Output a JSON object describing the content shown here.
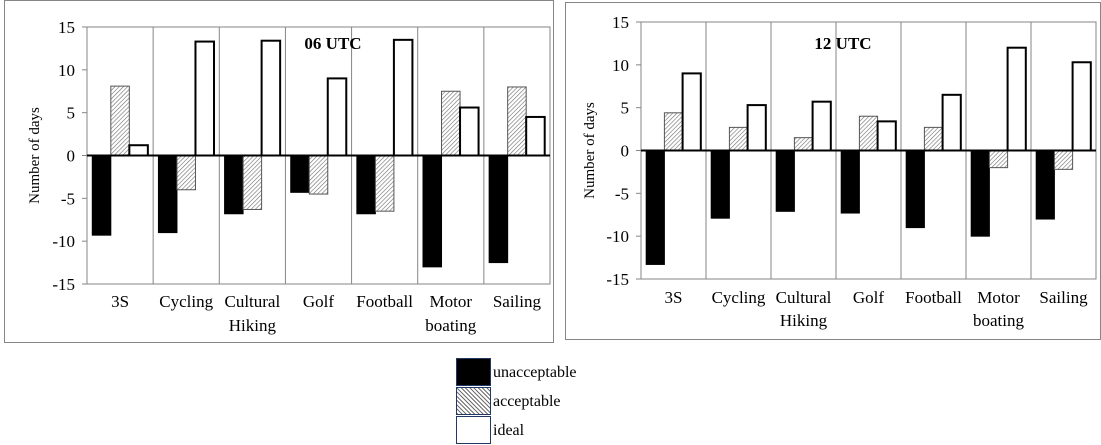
{
  "chart_data": [
    {
      "type": "bar",
      "title": "06 UTC",
      "ylabel": "Number of days",
      "xlabel": "",
      "ylim": [
        -15,
        15
      ],
      "yticks": [
        -15,
        -10,
        -5,
        0,
        5,
        10,
        15
      ],
      "grid": "vertical",
      "categories": [
        [
          "3S"
        ],
        [
          "Cycling"
        ],
        [
          "Cultural",
          "Hiking"
        ],
        [
          "Golf"
        ],
        [
          "Football"
        ],
        [
          "Motor",
          "boating"
        ],
        [
          "Sailing"
        ]
      ],
      "series": [
        {
          "name": "unacceptable",
          "values": [
            -9.3,
            -9.0,
            -6.8,
            -4.3,
            -6.8,
            -13.0,
            -12.5
          ]
        },
        {
          "name": "acceptable",
          "values": [
            8.1,
            -4.0,
            -6.3,
            -4.5,
            -6.5,
            7.5,
            8.0
          ]
        },
        {
          "name": "ideal",
          "values": [
            1.2,
            13.3,
            13.4,
            9.0,
            13.5,
            5.6,
            4.5
          ]
        }
      ]
    },
    {
      "type": "bar",
      "title": "12 UTC",
      "ylabel": "Number of days",
      "xlabel": "",
      "ylim": [
        -15,
        15
      ],
      "yticks": [
        -15,
        -10,
        -5,
        0,
        5,
        10,
        15
      ],
      "grid": "vertical",
      "categories": [
        [
          "3S"
        ],
        [
          "Cycling"
        ],
        [
          "Cultural",
          "Hiking"
        ],
        [
          "Golf"
        ],
        [
          "Football"
        ],
        [
          "Motor",
          "boating"
        ],
        [
          "Sailing"
        ]
      ],
      "series": [
        {
          "name": "unacceptable",
          "values": [
            -13.3,
            -7.9,
            -7.1,
            -7.3,
            -9.0,
            -10.0,
            -8.0
          ]
        },
        {
          "name": "acceptable",
          "values": [
            4.4,
            2.7,
            1.5,
            4.0,
            2.7,
            -2.0,
            -2.2
          ]
        },
        {
          "name": "ideal",
          "values": [
            9.0,
            5.3,
            5.7,
            3.4,
            6.5,
            12.0,
            10.3
          ]
        }
      ]
    }
  ],
  "legend": {
    "items": [
      {
        "label": "unacceptable",
        "style": "solid",
        "color": "#000000"
      },
      {
        "label": "acceptable",
        "style": "hatched",
        "color": "#808080"
      },
      {
        "label": "ideal",
        "style": "outline",
        "color": "#ffffff"
      }
    ]
  }
}
